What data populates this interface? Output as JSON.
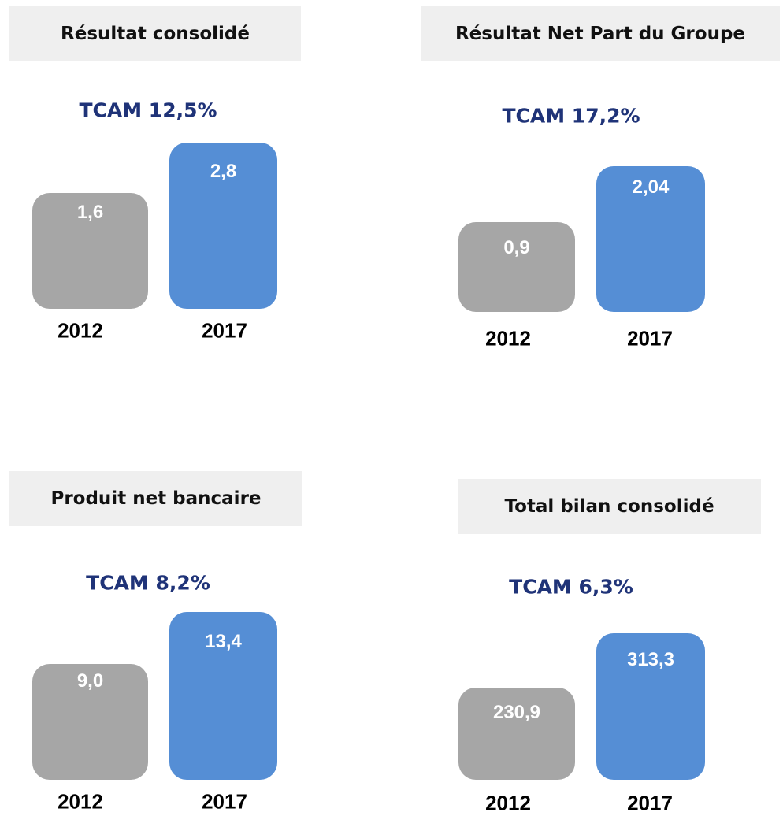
{
  "panels": [
    {
      "title": "Résultat consolidé",
      "tcam": "TCAM 12,5%",
      "bars": [
        {
          "year": "2012",
          "value": "1,6"
        },
        {
          "year": "2017",
          "value": "2,8"
        }
      ]
    },
    {
      "title": "Résultat Net Part du Groupe",
      "tcam": "TCAM 17,2%",
      "bars": [
        {
          "year": "2012",
          "value": "0,9"
        },
        {
          "year": "2017",
          "value": "2,04"
        }
      ]
    },
    {
      "title": "Produit net bancaire",
      "tcam": "TCAM 8,2%",
      "bars": [
        {
          "year": "2012",
          "value": "9,0"
        },
        {
          "year": "2017",
          "value": "13,4"
        }
      ]
    },
    {
      "title": "Total bilan consolidé",
      "tcam": "TCAM 6,3%",
      "bars": [
        {
          "year": "2012",
          "value": "230,9"
        },
        {
          "year": "2017",
          "value": "313,3"
        }
      ]
    }
  ]
}
